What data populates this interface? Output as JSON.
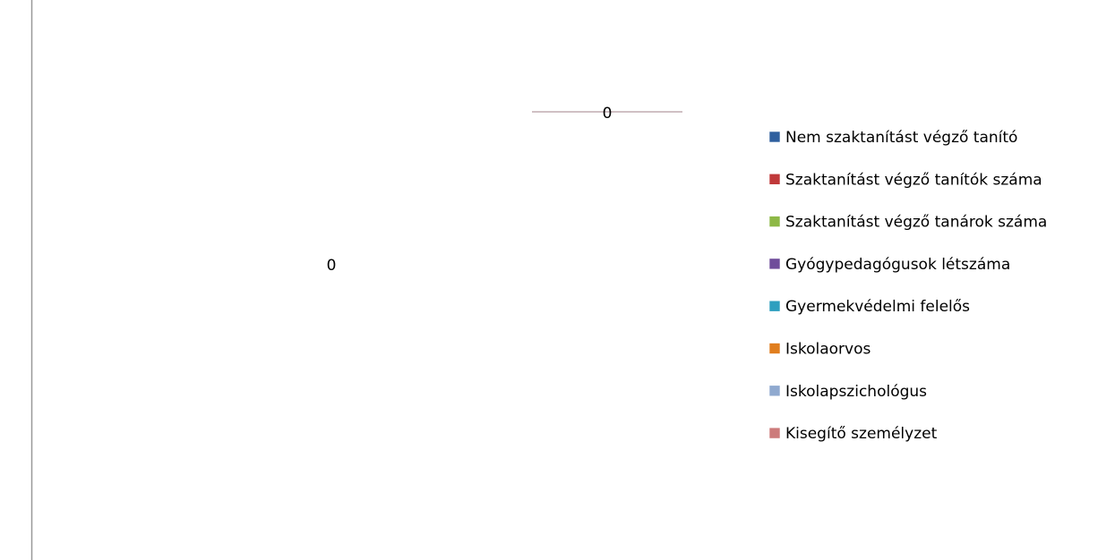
{
  "chart_data": {
    "type": "pie",
    "categories": [
      "Nem szaktanítást végző tanító",
      "Szaktanítást végző tanítók száma",
      "Szaktanítást végző tanárok száma",
      "Gyógypedagógusok létszáma",
      "Gyermekvédelmi felelős",
      "Iskolaorvos",
      "Iskolapszichológus",
      "Kisegítő személyzet"
    ],
    "values": [
      0,
      0,
      0,
      0,
      0,
      0,
      0,
      0
    ],
    "colors": [
      "#2f5f9e",
      "#c0393a",
      "#8db846",
      "#6f4c9b",
      "#2e9fbf",
      "#e07e1e",
      "#8fa9cf",
      "#cc7b7b"
    ],
    "legend": "right"
  }
}
